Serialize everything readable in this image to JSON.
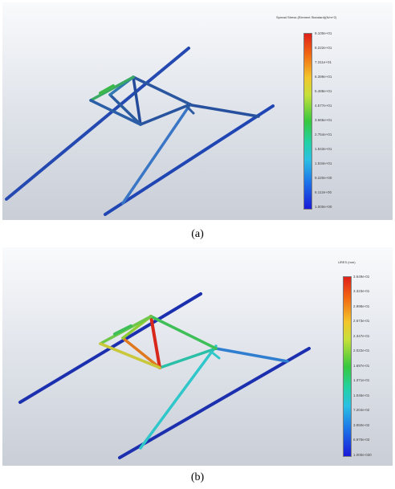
{
  "panel_a": {
    "caption": "(a)",
    "legend_title": "Spread Stress (Element Standard)(N/m^2)",
    "legend_ticks": [
      "9.100e+01",
      "8.222e+01",
      "7.311e+01",
      "6.399e+01",
      "5.488e+01",
      "4.577e+01",
      "3.665e+01",
      "2.754e+01",
      "1.843e+01",
      "1.534e+01",
      "9.220e+00",
      "6.112e+00",
      "1.000e+00"
    ],
    "colors": {
      "frame": "#24559e",
      "highlight_green": "#3cb84a"
    }
  },
  "panel_b": {
    "caption": "(b)",
    "legend_title": "URES (mm)",
    "legend_ticks": [
      "3.649e-01",
      "3.323e-01",
      "2.998e-01",
      "2.673e-01",
      "2.347e-01",
      "2.022e-01",
      "1.697e-01",
      "1.371e-01",
      "1.046e-01",
      "7.204e-02",
      "3.950e-02",
      "6.970e-03",
      "1.000e-030"
    ],
    "colors": {
      "frame": "#1c2fae",
      "red": "#d8281c",
      "cyan": "#2fc7c9"
    }
  }
}
